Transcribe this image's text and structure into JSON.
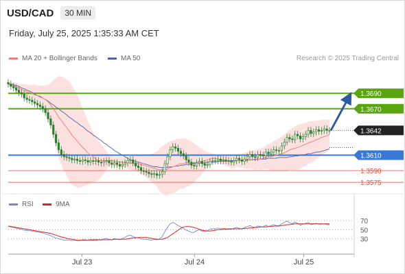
{
  "header": {
    "symbol": "USD/CAD",
    "timeframe": "30 MIN",
    "datetime": "Friday, July 25, 2025 1:35:33 AM CET"
  },
  "legend": {
    "ma_label": "MA 20 + Bollinger Bands",
    "ma50_label": "MA 50",
    "rsi_label": "RSI",
    "ma9_label": "9MA",
    "credit": "Research © 2025 Trading Central"
  },
  "colors": {
    "resistance": "#5aa611",
    "support": "#3a78d8",
    "target": "#e74c3c",
    "ma20": "#f08080",
    "bollinger": "#fbd7d7",
    "ma50": "#4f62a8",
    "candle": "#2e7d32",
    "rsi": "#6b8fd1",
    "rsi_ma": "#e02020",
    "arrow": "#2d5aa0"
  },
  "chart_data": [
    {
      "type": "candlestick",
      "title": "USD/CAD",
      "x_ticks": [
        "Jul 23",
        "Jul 24",
        "Jul 25"
      ],
      "ylim": [
        1.356,
        1.3715
      ],
      "last_price": "1.3642",
      "levels": [
        {
          "value": 1.369,
          "label": "1.3690",
          "role": "resistance"
        },
        {
          "value": 1.367,
          "label": "1.3670",
          "role": "resistance"
        },
        {
          "value": 1.361,
          "label": "1.3610",
          "role": "pivot"
        },
        {
          "value": 1.359,
          "label": "1.3590",
          "role": "target"
        },
        {
          "value": 1.3575,
          "label": "1.3575",
          "role": "target"
        }
      ],
      "close": [
        1.3702,
        1.3699,
        1.3697,
        1.3694,
        1.3691,
        1.3689,
        1.3684,
        1.3682,
        1.3681,
        1.3679,
        1.3677,
        1.3675,
        1.3673,
        1.367,
        1.3665,
        1.3657,
        1.3649,
        1.3637,
        1.3626,
        1.3617,
        1.3611,
        1.3608,
        1.3607,
        1.3606,
        1.3604,
        1.3605,
        1.3603,
        1.3602,
        1.3604,
        1.3603,
        1.3601,
        1.3603,
        1.3602,
        1.3603,
        1.3601,
        1.36,
        1.3602,
        1.3603,
        1.36,
        1.3598,
        1.36,
        1.3598,
        1.3596,
        1.3598,
        1.36,
        1.3603,
        1.3604,
        1.36,
        1.3596,
        1.3594,
        1.359,
        1.3589,
        1.3588,
        1.3586,
        1.3585,
        1.3586,
        1.3584,
        1.3585,
        1.3589,
        1.3599,
        1.3608,
        1.3617,
        1.3621,
        1.3619,
        1.3615,
        1.3612,
        1.3609,
        1.3604,
        1.3601,
        1.3597,
        1.3596,
        1.36,
        1.3602,
        1.3599,
        1.3597,
        1.3598,
        1.3602,
        1.3603,
        1.3603,
        1.3605,
        1.3603,
        1.3604,
        1.3603,
        1.3602,
        1.3601,
        1.3603,
        1.3606,
        1.3604,
        1.3602,
        1.3605,
        1.3608,
        1.3611,
        1.3608,
        1.3607,
        1.3611,
        1.361,
        1.3609,
        1.3614,
        1.3612,
        1.3614,
        1.3617,
        1.3616,
        1.3616,
        1.3622,
        1.3627,
        1.3633,
        1.3631,
        1.363,
        1.3637,
        1.3635,
        1.3631,
        1.3634,
        1.3637,
        1.3642,
        1.3638,
        1.364,
        1.3643,
        1.3641,
        1.3642,
        1.3644,
        1.3642,
        1.3642
      ],
      "ma20": [
        1.3702,
        1.3701,
        1.37,
        1.3698,
        1.3697,
        1.3695,
        1.3694,
        1.3692,
        1.3691,
        1.369,
        1.3688,
        1.3687,
        1.3685,
        1.3684,
        1.3682,
        1.3679,
        1.3675,
        1.367,
        1.3665,
        1.3659,
        1.3655,
        1.365,
        1.3646,
        1.3641,
        1.3636,
        1.3632,
        1.3628,
        1.3624,
        1.362,
        1.3617,
        1.3613,
        1.361,
        1.3608,
        1.3605,
        1.3603,
        1.3603,
        1.3603,
        1.3603,
        1.3603,
        1.3603,
        1.3602,
        1.3602,
        1.3601,
        1.3601,
        1.3601,
        1.36,
        1.36,
        1.3599,
        1.3599,
        1.3599,
        1.3598,
        1.3597,
        1.3596,
        1.3595,
        1.3594,
        1.3593,
        1.3592,
        1.3591,
        1.3591,
        1.3591,
        1.3592,
        1.3594,
        1.3595,
        1.3596,
        1.3598,
        1.3599,
        1.3599,
        1.36,
        1.36,
        1.36,
        1.36,
        1.3601,
        1.3601,
        1.3602,
        1.3603,
        1.3604,
        1.3605,
        1.3606,
        1.3606,
        1.3605,
        1.3604,
        1.3604,
        1.3603,
        1.3603,
        1.3602,
        1.3602,
        1.3603,
        1.3603,
        1.3603,
        1.3603,
        1.3603,
        1.3604,
        1.3604,
        1.3604,
        1.3605,
        1.3605,
        1.3606,
        1.3607,
        1.3608,
        1.3608,
        1.3609,
        1.361,
        1.3611,
        1.3612,
        1.3613,
        1.3615,
        1.3617,
        1.3618,
        1.3619,
        1.362,
        1.3621,
        1.3623,
        1.3624,
        1.3626,
        1.3627,
        1.3628,
        1.363,
        1.3631,
        1.3633,
        1.3634,
        1.3635,
        1.3637
      ],
      "bb_upper": [
        1.3704,
        1.3704,
        1.3703,
        1.3703,
        1.3702,
        1.3702,
        1.3702,
        1.3701,
        1.3701,
        1.3701,
        1.3701,
        1.37,
        1.37,
        1.37,
        1.37,
        1.3701,
        1.3703,
        1.3707,
        1.371,
        1.3712,
        1.3712,
        1.371,
        1.3708,
        1.3705,
        1.37,
        1.3694,
        1.3688,
        1.368,
        1.3671,
        1.3663,
        1.3654,
        1.3647,
        1.364,
        1.3634,
        1.3628,
        1.3624,
        1.362,
        1.3615,
        1.3611,
        1.3608,
        1.3608,
        1.3608,
        1.3608,
        1.3608,
        1.3608,
        1.3608,
        1.3609,
        1.3609,
        1.3609,
        1.361,
        1.361,
        1.361,
        1.3611,
        1.3611,
        1.3612,
        1.3613,
        1.3615,
        1.3618,
        1.3622,
        1.3624,
        1.3626,
        1.3628,
        1.3629,
        1.363,
        1.3631,
        1.3631,
        1.3632,
        1.3631,
        1.363,
        1.3628,
        1.3625,
        1.3623,
        1.362,
        1.3618,
        1.3616,
        1.3614,
        1.3613,
        1.3612,
        1.3611,
        1.361,
        1.361,
        1.361,
        1.361,
        1.361,
        1.3611,
        1.3611,
        1.3611,
        1.3612,
        1.3612,
        1.3613,
        1.3614,
        1.3615,
        1.3616,
        1.3617,
        1.3618,
        1.3619,
        1.362,
        1.3622,
        1.3624,
        1.3626,
        1.3628,
        1.363,
        1.3632,
        1.3634,
        1.3637,
        1.364,
        1.3643,
        1.3645,
        1.3647,
        1.3649,
        1.365,
        1.3651,
        1.3652,
        1.3653,
        1.3654,
        1.3654,
        1.3655,
        1.3655,
        1.3656,
        1.3656,
        1.3656,
        1.3656
      ],
      "bb_lower": [
        1.37,
        1.3698,
        1.3697,
        1.3693,
        1.3692,
        1.3688,
        1.3686,
        1.3683,
        1.3681,
        1.3679,
        1.3675,
        1.3674,
        1.367,
        1.3668,
        1.3664,
        1.3657,
        1.3647,
        1.3633,
        1.362,
        1.3606,
        1.3598,
        1.359,
        1.3584,
        1.3577,
        1.3572,
        1.357,
        1.3568,
        1.3568,
        1.3569,
        1.3571,
        1.3572,
        1.3573,
        1.3576,
        1.3576,
        1.3578,
        1.3582,
        1.3586,
        1.3591,
        1.3595,
        1.3598,
        1.3596,
        1.3596,
        1.3594,
        1.3594,
        1.3594,
        1.3592,
        1.3591,
        1.3589,
        1.3589,
        1.3588,
        1.3586,
        1.3584,
        1.3581,
        1.3579,
        1.3576,
        1.3573,
        1.3569,
        1.3564,
        1.356,
        1.3558,
        1.3558,
        1.356,
        1.3561,
        1.3562,
        1.3565,
        1.3567,
        1.3566,
        1.3569,
        1.357,
        1.3572,
        1.3575,
        1.3579,
        1.3582,
        1.3586,
        1.359,
        1.3594,
        1.3597,
        1.36,
        1.3601,
        1.36,
        1.3598,
        1.3598,
        1.3596,
        1.3596,
        1.3593,
        1.3593,
        1.3595,
        1.3594,
        1.3594,
        1.3593,
        1.3592,
        1.3593,
        1.3592,
        1.3591,
        1.3592,
        1.3591,
        1.3592,
        1.3592,
        1.3592,
        1.359,
        1.359,
        1.359,
        1.359,
        1.359,
        1.3589,
        1.359,
        1.3591,
        1.3591,
        1.3591,
        1.3591,
        1.3592,
        1.3595,
        1.3596,
        1.3599,
        1.36,
        1.3602,
        1.3605,
        1.3607,
        1.361,
        1.3612,
        1.3614,
        1.3618
      ],
      "ma50": [
        1.3702,
        1.3702,
        1.3701,
        1.37,
        1.3699,
        1.3697,
        1.3696,
        1.3694,
        1.3693,
        1.3691,
        1.3689,
        1.3687,
        1.3686,
        1.3684,
        1.3682,
        1.368,
        1.3677,
        1.3675,
        1.3672,
        1.367,
        1.3667,
        1.3665,
        1.3662,
        1.3659,
        1.3657,
        1.3654,
        1.3652,
        1.3649,
        1.3647,
        1.3644,
        1.3641,
        1.3639,
        1.3636,
        1.3634,
        1.3631,
        1.3629,
        1.3626,
        1.3624,
        1.3621,
        1.3619,
        1.3616,
        1.3614,
        1.3612,
        1.361,
        1.3608,
        1.3606,
        1.3604,
        1.3603,
        1.3602,
        1.3601,
        1.36,
        1.3599,
        1.3598,
        1.3597,
        1.3596,
        1.3595,
        1.3595,
        1.3594,
        1.3594,
        1.3594,
        1.3594,
        1.3595,
        1.3595,
        1.3596,
        1.3596,
        1.3597,
        1.3597,
        1.3598,
        1.3598,
        1.3599,
        1.3599,
        1.3599,
        1.36,
        1.36,
        1.36,
        1.3601,
        1.3601,
        1.3601,
        1.3601,
        1.3602,
        1.3602,
        1.3602,
        1.3602,
        1.3603,
        1.3603,
        1.3603,
        1.3603,
        1.3603,
        1.3603,
        1.3604,
        1.3604,
        1.3604,
        1.3604,
        1.3605,
        1.3605,
        1.3605,
        1.3605,
        1.3605,
        1.3606,
        1.3606,
        1.3606,
        1.3606,
        1.3607,
        1.3607,
        1.3607,
        1.3607,
        1.3608,
        1.3608,
        1.3609,
        1.3609,
        1.361,
        1.361,
        1.3611,
        1.3612,
        1.3612,
        1.3613,
        1.3614,
        1.3614,
        1.3615,
        1.3616,
        1.3617,
        1.3618
      ],
      "projection": {
        "from": 1.3642,
        "to": 1.369
      }
    },
    {
      "type": "line",
      "title": "RSI",
      "ylim": [
        10,
        85
      ],
      "y_ticks": [
        70,
        50,
        30
      ],
      "series": [
        {
          "name": "RSI",
          "values": [
            58,
            56,
            55,
            53,
            52,
            51,
            49,
            48,
            48,
            47,
            46,
            45,
            44,
            43,
            41,
            39,
            37,
            34,
            32,
            30,
            29,
            27,
            27,
            27,
            26,
            27,
            26,
            26,
            28,
            28,
            27,
            29,
            28,
            29,
            28,
            27,
            30,
            31,
            29,
            28,
            31,
            29,
            28,
            31,
            33,
            37,
            38,
            35,
            33,
            32,
            30,
            29,
            29,
            28,
            27,
            29,
            28,
            30,
            35,
            46,
            55,
            63,
            66,
            63,
            59,
            56,
            53,
            49,
            47,
            44,
            44,
            48,
            50,
            47,
            46,
            48,
            51,
            52,
            52,
            54,
            52,
            53,
            52,
            51,
            51,
            53,
            55,
            53,
            52,
            55,
            57,
            59,
            56,
            55,
            58,
            57,
            56,
            60,
            57,
            59,
            61,
            59,
            59,
            63,
            66,
            69,
            65,
            63,
            67,
            64,
            60,
            62,
            64,
            66,
            61,
            62,
            64,
            62,
            62,
            63,
            61,
            61
          ]
        },
        {
          "name": "9MA",
          "values": [
            58,
            57,
            56,
            55,
            54,
            53,
            52,
            51,
            50,
            49,
            48,
            47,
            46,
            45,
            44,
            43,
            42,
            40,
            38,
            36,
            34,
            33,
            31,
            30,
            29,
            28,
            27,
            27,
            27,
            27,
            27,
            27,
            27,
            27,
            28,
            28,
            28,
            28,
            28,
            28,
            29,
            29,
            29,
            29,
            29,
            30,
            31,
            32,
            32,
            33,
            33,
            33,
            33,
            32,
            31,
            30,
            29,
            29,
            29,
            31,
            33,
            37,
            41,
            45,
            49,
            53,
            56,
            57,
            57,
            56,
            55,
            53,
            51,
            49,
            48,
            47,
            47,
            48,
            49,
            50,
            50,
            51,
            51,
            52,
            52,
            52,
            52,
            52,
            52,
            53,
            53,
            54,
            54,
            55,
            55,
            56,
            56,
            56,
            57,
            57,
            58,
            58,
            58,
            59,
            60,
            61,
            61,
            62,
            63,
            63,
            63,
            63,
            63,
            63,
            63,
            63,
            63,
            63,
            63,
            63,
            63,
            63
          ]
        }
      ]
    }
  ]
}
